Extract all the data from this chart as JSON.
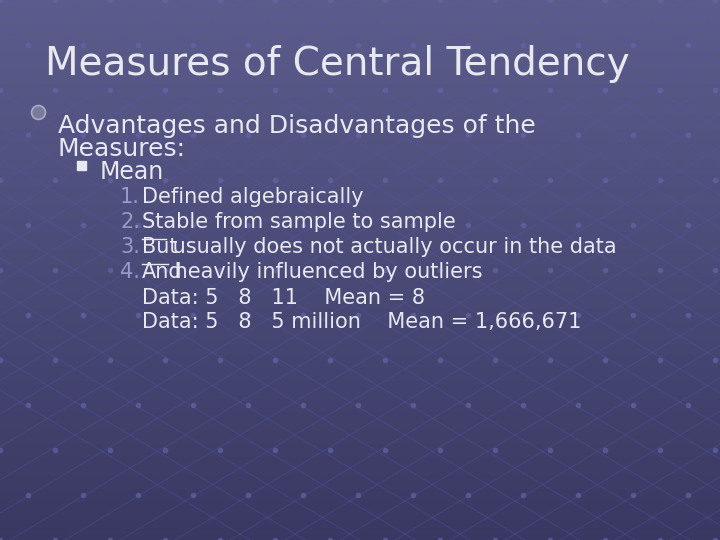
{
  "title": "Measures of Central Tendency",
  "bullet1_line1": "Advantages and Disadvantages of the",
  "bullet1_line2": "Measures:",
  "sub_bullet": "Mean",
  "item1": "Defined algebraically",
  "item2": "Stable from sample to sample",
  "item3_under": "But",
  "item3_rest": " usually does not actually occur in the data",
  "item4_under": "And",
  "item4_rest": " heavily influenced by outliers",
  "data_line1": "Data: 5   8   11    Mean = 8",
  "data_line2": "Data: 5   8   5 million    Mean = 1,666,671",
  "bg_color_top": "#5c5c8c",
  "bg_color_bottom": "#383862",
  "text_color": "#e8e8f0",
  "number_color": "#9999cc",
  "line_color": "#5555aa",
  "dot_color": "#6666aa",
  "title_fontsize": 28,
  "bullet_fontsize": 18,
  "sub_fontsize": 17,
  "item_fontsize": 15
}
